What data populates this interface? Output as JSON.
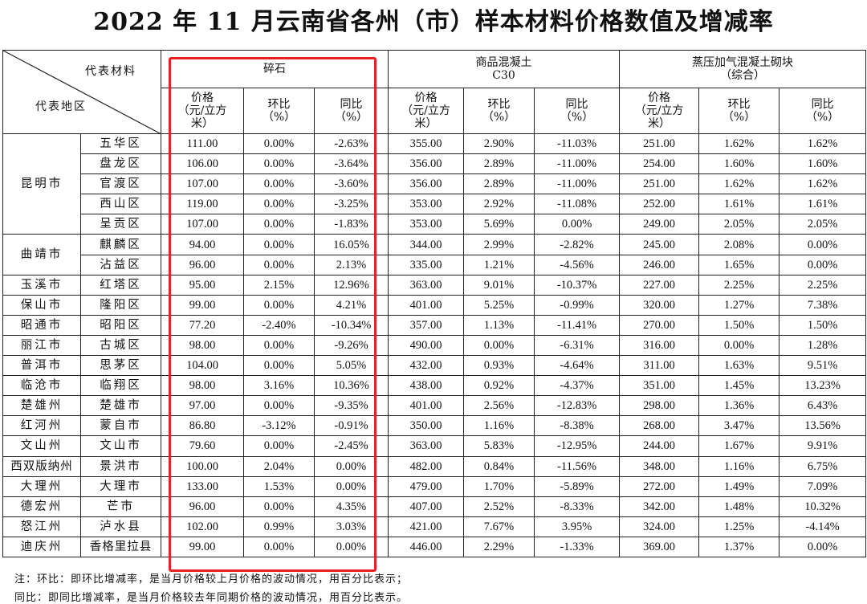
{
  "title": "2022 年 11 月云南省各州（市）样本材料价格数值及增减率",
  "header": {
    "material_label": "代表材料",
    "region_label": "代表地区",
    "materials": [
      "碎石",
      "商品混凝土\nC30",
      "蒸压加气混凝土砌块\n（综合）"
    ],
    "sub_columns": [
      "价格\n（元/立方\n米）",
      "环比\n（%）",
      "同比\n（%）"
    ]
  },
  "rows": [
    {
      "region": "昆明市",
      "span": 5,
      "district": "五华区",
      "v": [
        "111.00",
        "0.00%",
        "-2.63%",
        "355.00",
        "2.90%",
        "-11.03%",
        "251.00",
        "1.62%",
        "1.62%"
      ]
    },
    {
      "district": "盘龙区",
      "v": [
        "106.00",
        "0.00%",
        "-3.64%",
        "356.00",
        "2.89%",
        "-11.00%",
        "254.00",
        "1.60%",
        "1.60%"
      ]
    },
    {
      "district": "官渡区",
      "v": [
        "107.00",
        "0.00%",
        "-3.60%",
        "356.00",
        "2.89%",
        "-11.00%",
        "251.00",
        "1.62%",
        "1.62%"
      ]
    },
    {
      "district": "西山区",
      "v": [
        "119.00",
        "0.00%",
        "-3.25%",
        "353.00",
        "2.92%",
        "-11.08%",
        "252.00",
        "1.61%",
        "1.61%"
      ]
    },
    {
      "district": "呈贡区",
      "v": [
        "107.00",
        "0.00%",
        "-1.83%",
        "353.00",
        "5.69%",
        "0.00%",
        "249.00",
        "2.05%",
        "2.05%"
      ]
    },
    {
      "region": "曲靖市",
      "span": 2,
      "district": "麒麟区",
      "v": [
        "94.00",
        "0.00%",
        "16.05%",
        "344.00",
        "2.99%",
        "-2.82%",
        "245.00",
        "2.08%",
        "0.00%"
      ]
    },
    {
      "district": "沾益区",
      "v": [
        "96.00",
        "0.00%",
        "2.13%",
        "335.00",
        "1.21%",
        "-4.56%",
        "246.00",
        "1.65%",
        "0.00%"
      ]
    },
    {
      "region": "玉溪市",
      "span": 1,
      "district": "红塔区",
      "v": [
        "95.00",
        "2.15%",
        "12.96%",
        "363.00",
        "9.01%",
        "-10.37%",
        "227.00",
        "2.25%",
        "2.25%"
      ]
    },
    {
      "region": "保山市",
      "span": 1,
      "district": "隆阳区",
      "v": [
        "99.00",
        "0.00%",
        "4.21%",
        "401.00",
        "5.25%",
        "-0.99%",
        "320.00",
        "1.27%",
        "7.38%"
      ]
    },
    {
      "region": "昭通市",
      "span": 1,
      "district": "昭阳区",
      "v": [
        "77.20",
        "-2.40%",
        "-10.34%",
        "357.00",
        "1.13%",
        "-11.41%",
        "270.00",
        "1.50%",
        "1.50%"
      ]
    },
    {
      "region": "丽江市",
      "span": 1,
      "district": "古城区",
      "v": [
        "98.00",
        "0.00%",
        "-9.26%",
        "490.00",
        "0.00%",
        "-6.31%",
        "316.00",
        "0.00%",
        "1.28%"
      ]
    },
    {
      "region": "普洱市",
      "span": 1,
      "district": "思茅区",
      "v": [
        "104.00",
        "0.00%",
        "5.05%",
        "432.00",
        "0.93%",
        "-4.64%",
        "311.00",
        "1.63%",
        "9.51%"
      ]
    },
    {
      "region": "临沧市",
      "span": 1,
      "district": "临翔区",
      "v": [
        "98.00",
        "3.16%",
        "10.36%",
        "438.00",
        "0.92%",
        "-4.37%",
        "351.00",
        "1.45%",
        "13.23%"
      ]
    },
    {
      "region": "楚雄州",
      "span": 1,
      "district": "楚雄市",
      "v": [
        "97.00",
        "0.00%",
        "-9.35%",
        "401.00",
        "2.56%",
        "-12.83%",
        "298.00",
        "1.36%",
        "6.43%"
      ]
    },
    {
      "region": "红河州",
      "span": 1,
      "district": "蒙自市",
      "v": [
        "86.80",
        "-3.12%",
        "-0.91%",
        "350.00",
        "1.16%",
        "-8.38%",
        "268.00",
        "3.47%",
        "13.56%"
      ]
    },
    {
      "region": "文山州",
      "span": 1,
      "district": "文山市",
      "v": [
        "79.60",
        "0.00%",
        "-2.45%",
        "363.00",
        "5.83%",
        "-12.95%",
        "244.00",
        "1.67%",
        "9.91%"
      ]
    },
    {
      "region": "西双版纳州",
      "span": 1,
      "district": "景洪市",
      "v": [
        "100.00",
        "2.04%",
        "0.00%",
        "482.00",
        "0.84%",
        "-11.56%",
        "348.00",
        "1.16%",
        "6.75%"
      ]
    },
    {
      "region": "大理州",
      "span": 1,
      "district": "大理市",
      "v": [
        "133.00",
        "1.53%",
        "0.00%",
        "479.00",
        "1.70%",
        "-5.89%",
        "272.00",
        "1.49%",
        "7.09%"
      ]
    },
    {
      "region": "德宏州",
      "span": 1,
      "district": "芒市",
      "v": [
        "96.00",
        "0.00%",
        "4.35%",
        "407.00",
        "2.52%",
        "-8.33%",
        "342.00",
        "1.48%",
        "10.32%"
      ]
    },
    {
      "region": "怒江州",
      "span": 1,
      "district": "泸水县",
      "v": [
        "102.00",
        "0.99%",
        "3.03%",
        "421.00",
        "7.67%",
        "3.95%",
        "324.00",
        "1.25%",
        "-4.14%"
      ]
    },
    {
      "region": "迪庆州",
      "span": 1,
      "district": "香格里拉县",
      "v": [
        "99.00",
        "0.00%",
        "0.00%",
        "446.00",
        "2.29%",
        "-1.33%",
        "369.00",
        "1.37%",
        "0.00%"
      ]
    }
  ],
  "notes": [
    "注：环比：即环比增减率，是当月价格较上月价格的波动情况，用百分比表示；",
    "同比：即同比增减率，是当月价格较去年同期价格的波动情况，用百分比表示。"
  ],
  "highlight_color": "#e8211f"
}
